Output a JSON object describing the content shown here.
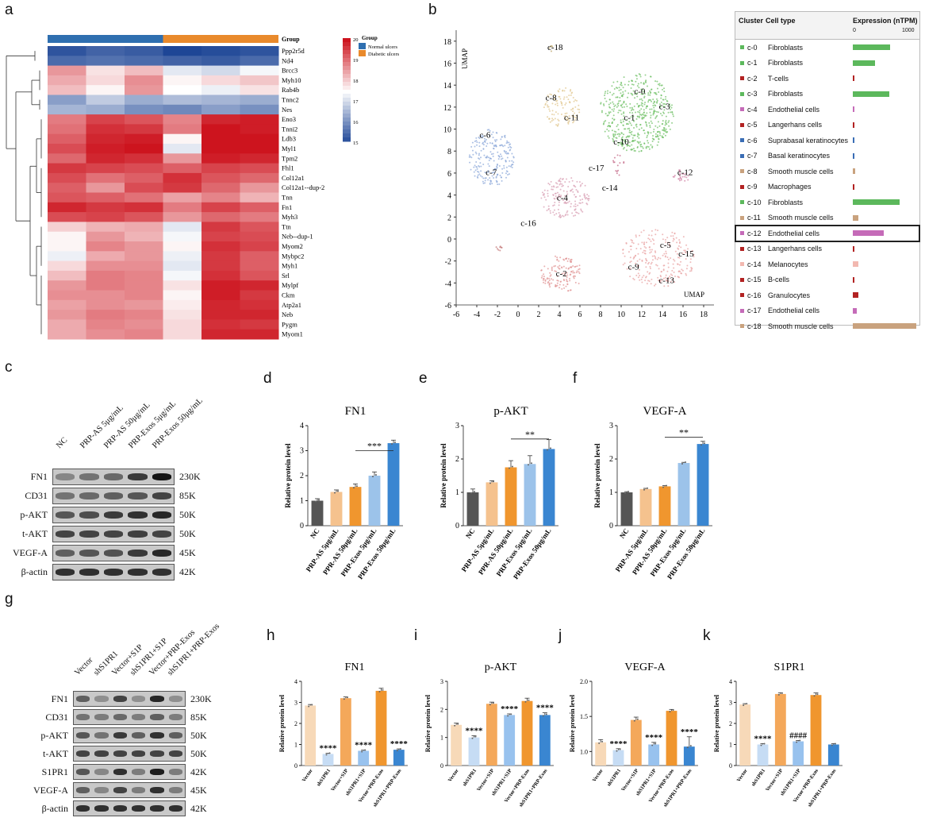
{
  "panel_letters": {
    "a": "a",
    "b": "b",
    "c": "c",
    "d": "d",
    "e": "e",
    "f": "f",
    "g": "g",
    "h": "h",
    "i": "i",
    "j": "j",
    "k": "k"
  },
  "heatmap": {
    "group_label": "Group",
    "legend_title": "Group",
    "legend_items": [
      {
        "label": "Normal ulcers",
        "color": "#2f6fb0"
      },
      {
        "label": "Diabetic ulcers",
        "color": "#e98a2c"
      }
    ],
    "scale_ticks": [
      "20",
      "19",
      "18",
      "17",
      "16",
      "15"
    ],
    "genes": [
      "Ppp2r5d",
      "Nd4",
      "Brcc3",
      "Myh10",
      "Rab4b",
      "Tnnc2",
      "Nes",
      "Eno3",
      "Tnni2",
      "Ldb3",
      "Myl1",
      "Tpm2",
      "Fhl1",
      "Col12a1",
      "Col12a1--dup-2",
      "Tnn",
      "Fn1",
      "Myh3",
      "Ttn",
      "Neb--dup-1",
      "Myom2",
      "Mybpc2",
      "Myh1",
      "Srl",
      "Mylpf",
      "Ckm",
      "Atp2a1",
      "Neb",
      "Pygm",
      "Myom1"
    ],
    "values": [
      [
        15.2,
        15.4,
        15.3,
        15.0,
        15.1,
        15.2
      ],
      [
        15.5,
        15.6,
        15.5,
        15.4,
        15.3,
        15.5
      ],
      [
        18.6,
        17.8,
        18.2,
        17.2,
        17.0,
        17.4
      ],
      [
        18.4,
        17.9,
        18.7,
        17.6,
        17.9,
        18.1
      ],
      [
        18.2,
        17.6,
        18.6,
        17.5,
        17.3,
        17.8
      ],
      [
        16.2,
        16.8,
        16.4,
        16.6,
        16.5,
        16.4
      ],
      [
        16.5,
        16.4,
        16.0,
        15.9,
        16.2,
        16.0
      ],
      [
        18.9,
        19.5,
        19.3,
        18.8,
        19.8,
        19.9
      ],
      [
        19.0,
        19.7,
        19.6,
        18.9,
        20.0,
        19.9
      ],
      [
        19.2,
        19.8,
        19.9,
        17.6,
        20.0,
        20.0
      ],
      [
        19.4,
        19.9,
        20.0,
        17.2,
        20.0,
        20.0
      ],
      [
        19.1,
        19.8,
        19.7,
        18.6,
        19.9,
        19.8
      ],
      [
        19.6,
        19.5,
        19.4,
        19.2,
        19.5,
        19.4
      ],
      [
        19.4,
        19.0,
        19.2,
        19.7,
        19.3,
        19.1
      ],
      [
        19.2,
        18.6,
        19.4,
        19.6,
        19.1,
        18.6
      ],
      [
        19.3,
        19.2,
        19.0,
        18.5,
        18.8,
        18.3
      ],
      [
        19.8,
        19.6,
        19.7,
        18.9,
        19.5,
        19.2
      ],
      [
        19.4,
        19.5,
        19.3,
        18.6,
        19.1,
        18.9
      ],
      [
        18.0,
        18.3,
        18.4,
        17.2,
        19.6,
        19.3
      ],
      [
        17.6,
        18.6,
        18.3,
        17.4,
        19.5,
        19.4
      ],
      [
        17.6,
        18.8,
        18.6,
        17.6,
        19.7,
        19.5
      ],
      [
        17.3,
        18.4,
        18.6,
        17.3,
        19.6,
        19.2
      ],
      [
        17.9,
        18.7,
        18.7,
        17.2,
        19.6,
        19.2
      ],
      [
        18.2,
        18.9,
        18.8,
        17.4,
        19.7,
        19.3
      ],
      [
        18.6,
        18.9,
        18.8,
        17.8,
        19.9,
        19.8
      ],
      [
        18.7,
        18.7,
        18.8,
        17.6,
        19.9,
        19.6
      ],
      [
        18.5,
        18.7,
        18.6,
        17.7,
        19.8,
        19.7
      ],
      [
        18.6,
        18.9,
        18.8,
        17.8,
        19.8,
        19.8
      ],
      [
        18.4,
        18.8,
        18.7,
        17.9,
        19.7,
        19.6
      ],
      [
        18.4,
        18.7,
        18.8,
        17.9,
        19.8,
        19.8
      ]
    ]
  },
  "umap": {
    "y_axis_label": "UMAP",
    "x_axis_label": "UMAP",
    "x_ticks": [
      "-6",
      "-4",
      "-2",
      "0",
      "2",
      "4",
      "6",
      "8",
      "10",
      "12",
      "14",
      "16",
      "18"
    ],
    "y_ticks": [
      "18",
      "16",
      "14",
      "12",
      "10",
      "8",
      "6",
      "4",
      "2",
      "0",
      "-2",
      "-4",
      "-6"
    ],
    "cluster_labels": [
      {
        "text": "c-0",
        "x": 11.8,
        "y": 13.2
      },
      {
        "text": "c-1",
        "x": 10.8,
        "y": 10.8
      },
      {
        "text": "c-2",
        "x": 4.2,
        "y": -3.4
      },
      {
        "text": "c-3",
        "x": 14.2,
        "y": 11.8
      },
      {
        "text": "c-4",
        "x": 4.3,
        "y": 3.5
      },
      {
        "text": "c-5",
        "x": 14.3,
        "y": -0.8
      },
      {
        "text": "c-6",
        "x": -3.2,
        "y": 9.2
      },
      {
        "text": "c-7",
        "x": -2.6,
        "y": 5.8
      },
      {
        "text": "c-8",
        "x": 3.2,
        "y": 12.6
      },
      {
        "text": "c-9",
        "x": 11.2,
        "y": -2.8
      },
      {
        "text": "c-10",
        "x": 10.0,
        "y": 8.6
      },
      {
        "text": "c-11",
        "x": 5.2,
        "y": 10.8
      },
      {
        "text": "c-12",
        "x": 16.2,
        "y": 5.8
      },
      {
        "text": "c-13",
        "x": 14.4,
        "y": -4.0
      },
      {
        "text": "c-14",
        "x": 8.9,
        "y": 4.4
      },
      {
        "text": "c-15",
        "x": 16.3,
        "y": -1.6
      },
      {
        "text": "c-16",
        "x": 1.0,
        "y": 1.2
      },
      {
        "text": "c-17",
        "x": 7.6,
        "y": 6.2
      },
      {
        "text": "c-18",
        "x": 3.6,
        "y": 17.2
      }
    ]
  },
  "cluster_table": {
    "col_cluster": "Cluster",
    "col_celltype": "Cell type",
    "col_expression": "Expression (nTPM)",
    "scale_min": "0",
    "scale_max": "1000",
    "rows": [
      {
        "cluster": "c-0",
        "celltype": "Fibroblasts",
        "value": 200,
        "color": "#5cb85c"
      },
      {
        "cluster": "c-1",
        "celltype": "Fibroblasts",
        "value": 120,
        "color": "#5cb85c"
      },
      {
        "cluster": "c-2",
        "celltype": "T-cells",
        "value": 8,
        "color": "#b22222"
      },
      {
        "cluster": "c-3",
        "celltype": "Fibroblasts",
        "value": 195,
        "color": "#5cb85c"
      },
      {
        "cluster": "c-4",
        "celltype": "Endothelial cells",
        "value": 10,
        "color": "#c56bb8"
      },
      {
        "cluster": "c-5",
        "celltype": "Langerhans cells",
        "value": 8,
        "color": "#b22222"
      },
      {
        "cluster": "c-6",
        "celltype": "Suprabasal keratinocytes",
        "value": 3,
        "color": "#3a6db5"
      },
      {
        "cluster": "c-7",
        "celltype": "Basal keratinocytes",
        "value": 4,
        "color": "#3a6db5"
      },
      {
        "cluster": "c-8",
        "celltype": "Smooth muscle cells",
        "value": 12,
        "color": "#c9a27e"
      },
      {
        "cluster": "c-9",
        "celltype": "Macrophages",
        "value": 7,
        "color": "#b22222"
      },
      {
        "cluster": "c-10",
        "celltype": "Fibroblasts",
        "value": 250,
        "color": "#5cb85c"
      },
      {
        "cluster": "c-11",
        "celltype": "Smooth muscle cells",
        "value": 30,
        "color": "#c9a27e"
      },
      {
        "cluster": "c-12",
        "celltype": "Endothelial cells",
        "value": 165,
        "color": "#c56bb8"
      },
      {
        "cluster": "c-13",
        "celltype": "Langerhans cells",
        "value": 6,
        "color": "#b22222"
      },
      {
        "cluster": "c-14",
        "celltype": "Melanocytes",
        "value": 28,
        "color": "#f2b8b0"
      },
      {
        "cluster": "c-15",
        "celltype": "B-cells",
        "value": 6,
        "color": "#b22222"
      },
      {
        "cluster": "c-16",
        "celltype": "Granulocytes",
        "value": 30,
        "color": "#b22222"
      },
      {
        "cluster": "c-17",
        "celltype": "Endothelial cells",
        "value": 20,
        "color": "#c56bb8"
      },
      {
        "cluster": "c-18",
        "celltype": "Smooth muscle cells",
        "value": 340,
        "color": "#c9a27e"
      }
    ],
    "highlight_row": "c-12"
  },
  "blot_c": {
    "lanes": [
      "NC",
      "PRP-AS 5μg/mL",
      "PRP-AS 50μg/mL",
      "PRP-Exos 5μg/mL",
      "PRP-Exos 50μg/mL"
    ],
    "rows": [
      {
        "name": "FN1",
        "kd": "230K",
        "intensity": [
          0.35,
          0.45,
          0.5,
          0.75,
          0.95
        ]
      },
      {
        "name": "CD31",
        "kd": "85K",
        "intensity": [
          0.45,
          0.5,
          0.55,
          0.6,
          0.7
        ]
      },
      {
        "name": "p-AKT",
        "kd": "50K",
        "intensity": [
          0.6,
          0.65,
          0.75,
          0.8,
          0.85
        ]
      },
      {
        "name": "t-AKT",
        "kd": "50K",
        "intensity": [
          0.7,
          0.7,
          0.7,
          0.72,
          0.7
        ]
      },
      {
        "name": "VEGF-A",
        "kd": "45K",
        "intensity": [
          0.55,
          0.6,
          0.62,
          0.75,
          0.85
        ]
      },
      {
        "name": "β-actin",
        "kd": "42K",
        "intensity": [
          0.8,
          0.8,
          0.8,
          0.8,
          0.8
        ]
      }
    ]
  },
  "blot_g": {
    "lanes": [
      "Vector",
      "shS1PR1",
      "Vector+S1P",
      "shS1PR1+S1P",
      "Vector+PRP-Exos",
      "shS1PR1+PRP-Exos"
    ],
    "rows": [
      {
        "name": "FN1",
        "kd": "230K",
        "intensity": [
          0.55,
          0.3,
          0.7,
          0.3,
          0.85,
          0.3
        ]
      },
      {
        "name": "CD31",
        "kd": "85K",
        "intensity": [
          0.45,
          0.4,
          0.5,
          0.4,
          0.55,
          0.4
        ]
      },
      {
        "name": "p-AKT",
        "kd": "50K",
        "intensity": [
          0.6,
          0.45,
          0.75,
          0.55,
          0.8,
          0.55
        ]
      },
      {
        "name": "t-AKT",
        "kd": "50K",
        "intensity": [
          0.7,
          0.7,
          0.7,
          0.7,
          0.7,
          0.7
        ]
      },
      {
        "name": "S1PR1",
        "kd": "42K",
        "intensity": [
          0.6,
          0.35,
          0.8,
          0.4,
          0.9,
          0.4
        ]
      },
      {
        "name": "VEGF-A",
        "kd": "45K",
        "intensity": [
          0.55,
          0.35,
          0.7,
          0.4,
          0.8,
          0.4
        ]
      },
      {
        "name": "β-actin",
        "kd": "42K",
        "intensity": [
          0.8,
          0.8,
          0.8,
          0.8,
          0.8,
          0.8
        ]
      }
    ]
  },
  "chart_data": [
    {
      "id": "d",
      "type": "bar",
      "title": "FN1",
      "ylabel": "Relative protein level",
      "ylim": [
        0,
        4
      ],
      "yticks": [
        0,
        1,
        2,
        3,
        4
      ],
      "categories": [
        "NC",
        "PRP-AS 5μg/mL",
        "PPR-AS 50μg/mL",
        "PRP-Exos 5μg/mL",
        "PRP-Exos 50μg/mL"
      ],
      "values": [
        1.0,
        1.35,
        1.55,
        2.0,
        3.3
      ],
      "errors": [
        0.08,
        0.08,
        0.12,
        0.15,
        0.12
      ],
      "colors": [
        "#555555",
        "#f5c28e",
        "#f0962e",
        "#9cc3ea",
        "#3a86d1"
      ],
      "sig": [
        {
          "from": 2,
          "to": 4,
          "label": "***",
          "y": 3.0
        }
      ]
    },
    {
      "id": "e",
      "type": "bar",
      "title": "p-AKT",
      "ylabel": "Relative protein level",
      "ylim": [
        0,
        3
      ],
      "yticks": [
        0,
        1,
        2,
        3
      ],
      "categories": [
        "NC",
        "PRP-AS 5μg/mL",
        "PPR-AS 50μg/mL",
        "PRP-Exos 5μg/mL",
        "PRP-Exos 50μg/mL"
      ],
      "values": [
        1.0,
        1.3,
        1.75,
        1.85,
        2.3
      ],
      "errors": [
        0.1,
        0.05,
        0.2,
        0.25,
        0.28
      ],
      "colors": [
        "#555555",
        "#f5c28e",
        "#f0962e",
        "#9cc3ea",
        "#3a86d1"
      ],
      "sig": [
        {
          "from": 2,
          "to": 4,
          "label": "**",
          "y": 2.6
        }
      ]
    },
    {
      "id": "f",
      "type": "bar",
      "title": "VEGF-A",
      "ylabel": "Relative protein level",
      "ylim": [
        0,
        3
      ],
      "yticks": [
        0,
        1,
        2,
        3
      ],
      "categories": [
        "NC",
        "PRP-AS 5μg/mL",
        "PPR-AS 50μg/mL",
        "PRP-Exos 5μg/mL",
        "PRP-Exos 50μg/mL"
      ],
      "values": [
        1.0,
        1.1,
        1.18,
        1.88,
        2.45
      ],
      "errors": [
        0.02,
        0.02,
        0.02,
        0.02,
        0.08
      ],
      "colors": [
        "#555555",
        "#f5c28e",
        "#f0962e",
        "#9cc3ea",
        "#3a86d1"
      ],
      "sig": [
        {
          "from": 2,
          "to": 4,
          "label": "**",
          "y": 2.65
        }
      ]
    },
    {
      "id": "h",
      "type": "bar",
      "title": "FN1",
      "ylabel": "Relative protein level",
      "ylim": [
        0,
        4
      ],
      "yticks": [
        0,
        1,
        2,
        3,
        4
      ],
      "categories": [
        "Vector",
        "shS1PR1",
        "Vector+S1P",
        "shS1PR1+S1P",
        "Vector+PRP-Exos",
        "shS1PR1+PRP-Exos"
      ],
      "values": [
        2.85,
        0.55,
        3.2,
        0.7,
        3.55,
        0.75
      ],
      "errors": [
        0.05,
        0.03,
        0.06,
        0.03,
        0.12,
        0.04
      ],
      "colors": [
        "#f7d9b8",
        "#c6dcf4",
        "#f4a85a",
        "#98c2ee",
        "#f0962e",
        "#3a86d1"
      ],
      "stars": [
        {
          "at": 1,
          "label": "****"
        },
        {
          "at": 3,
          "label": "****"
        },
        {
          "at": 5,
          "label": "****"
        }
      ]
    },
    {
      "id": "i",
      "type": "bar",
      "title": "p-AKT",
      "ylabel": "Relative protein level",
      "ylim": [
        0,
        3
      ],
      "yticks": [
        0,
        1,
        2,
        3
      ],
      "categories": [
        "Vector",
        "shS1PR1",
        "Vector+S1P",
        "shS1PR1+S1P",
        "Vector+PRP-Exos",
        "shS1PR1+PRP-Exos"
      ],
      "values": [
        1.45,
        1.0,
        2.2,
        1.8,
        2.3,
        1.8
      ],
      "errors": [
        0.06,
        0.06,
        0.06,
        0.04,
        0.1,
        0.08
      ],
      "colors": [
        "#f7d9b8",
        "#c6dcf4",
        "#f4a85a",
        "#98c2ee",
        "#f0962e",
        "#3a86d1"
      ],
      "stars": [
        {
          "at": 1,
          "label": "****"
        },
        {
          "at": 3,
          "label": "****"
        },
        {
          "at": 5,
          "label": "****"
        }
      ]
    },
    {
      "id": "j",
      "type": "bar",
      "title": "VEGF-A",
      "ylabel": "Relative protein level",
      "ylim": [
        0.8,
        2.0
      ],
      "yticks": [
        1.0,
        1.5,
        2.0
      ],
      "ytick_labels": [
        "1.0",
        "1.5",
        "2.0"
      ],
      "categories": [
        "Vector",
        "shS1PR1",
        "Vector+S1P",
        "shS1PR1+S1P",
        "Vector+PRP-Exos",
        "shS1PR1+PRP-Exos"
      ],
      "values": [
        1.13,
        1.02,
        1.45,
        1.1,
        1.58,
        1.07
      ],
      "errors": [
        0.04,
        0.02,
        0.04,
        0.03,
        0.02,
        0.14
      ],
      "colors": [
        "#f7d9b8",
        "#c6dcf4",
        "#f4a85a",
        "#98c2ee",
        "#f0962e",
        "#3a86d1"
      ],
      "stars": [
        {
          "at": 1,
          "label": "****"
        },
        {
          "at": 3,
          "label": "****"
        },
        {
          "at": 5,
          "label": "****"
        }
      ]
    },
    {
      "id": "k",
      "type": "bar",
      "title": "S1PR1",
      "ylabel": "Relative protein level",
      "ylim": [
        0,
        4
      ],
      "yticks": [
        0,
        1,
        2,
        3,
        4
      ],
      "categories": [
        "Vector",
        "shS1PR1",
        "Vector+S1P",
        "shS1PR1+S1P",
        "Vector+PRP-Exos",
        "shS1PR1+PRP-Exos"
      ],
      "values": [
        2.9,
        1.0,
        3.4,
        1.15,
        3.35,
        1.0
      ],
      "errors": [
        0.04,
        0.04,
        0.06,
        0.04,
        0.1,
        0.04
      ],
      "colors": [
        "#f7d9b8",
        "#c6dcf4",
        "#f4a85a",
        "#98c2ee",
        "#f0962e",
        "#3a86d1"
      ],
      "stars": [
        {
          "at": 1,
          "label": "****"
        },
        {
          "at": 3,
          "label": "####"
        }
      ]
    }
  ]
}
